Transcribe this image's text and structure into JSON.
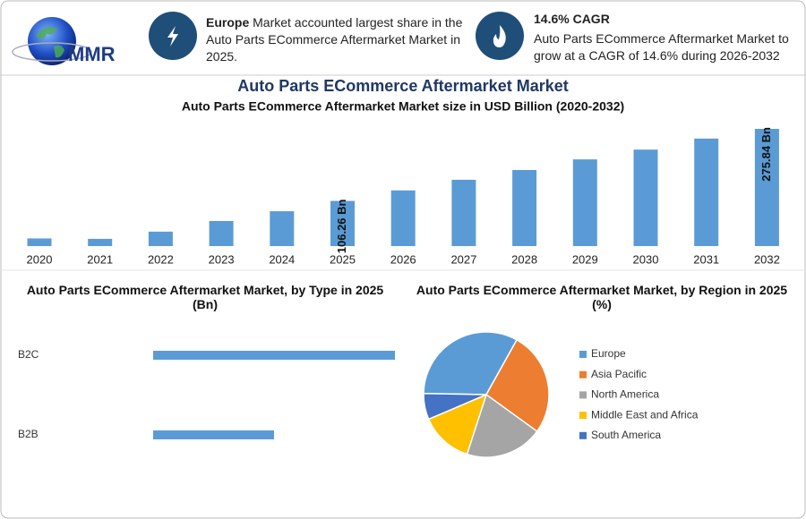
{
  "header": {
    "logo": "MMR",
    "box1": {
      "highlight": "Europe",
      "text": "Market accounted largest share in the Auto Parts ECommerce Aftermarket Market in 2025."
    },
    "box2": {
      "title": "14.6% CAGR",
      "text": "Auto Parts ECommerce Aftermarket Market to grow at a CAGR of 14.6% during 2026-2032"
    },
    "title": "Auto Parts ECommerce Aftermarket Market"
  },
  "chart_data": [
    {
      "type": "bar",
      "title": "Auto Parts ECommerce Aftermarket Market size in USD Billion (2020-2032)",
      "categories": [
        "2020",
        "2021",
        "2022",
        "2023",
        "2024",
        "2025",
        "2026",
        "2027",
        "2028",
        "2029",
        "2030",
        "2031",
        "2032"
      ],
      "values": [
        18,
        17,
        34,
        59,
        82,
        106.26,
        131,
        156,
        179,
        204,
        227,
        253,
        275.84
      ],
      "value_labels": [
        null,
        null,
        null,
        null,
        null,
        "106.26 Bn",
        null,
        null,
        null,
        null,
        null,
        null,
        "275.84 Bn"
      ],
      "color": "#5b9bd5"
    },
    {
      "type": "barh",
      "title": "Auto Parts ECommerce Aftermarket Market, by Type in 2025 (Bn)",
      "categories": [
        "B2C",
        "B2B"
      ],
      "values": [
        70.8,
        35.4
      ],
      "color": "#5b9bd5"
    },
    {
      "type": "pie",
      "title": "Auto Parts ECommerce Aftermarket Market, by Region in 2025 (%)",
      "categories": [
        "Europe",
        "Asia Pacific",
        "North America",
        "Middle East and Africa",
        "South America"
      ],
      "values": [
        32.8,
        26.9,
        20.0,
        13.6,
        6.7
      ],
      "colors": [
        "#5b9bd5",
        "#ed7d31",
        "#a5a5a5",
        "#ffc000",
        "#4472c4"
      ]
    }
  ]
}
